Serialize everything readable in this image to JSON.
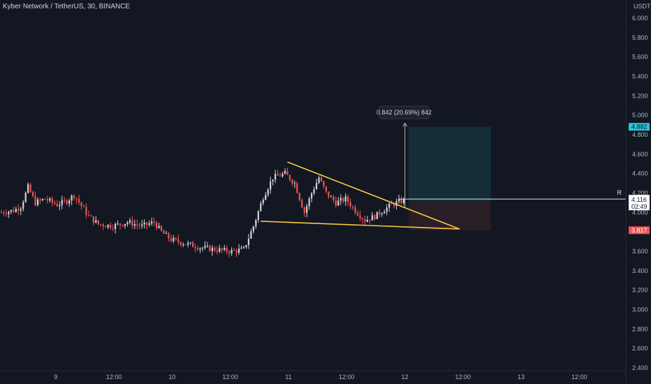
{
  "header": {
    "title": "Kyber Network / TetherUS, 30, BINANCE"
  },
  "axis": {
    "currency": "USDT"
  },
  "markers": {
    "target_price": "4.882",
    "current_price": "4.116",
    "countdown": "02:49",
    "stop_price": "3.817",
    "line_label": "R"
  },
  "measure": {
    "label": "0.842 (20.69%) 842"
  },
  "colors": {
    "background": "#131722",
    "up": "#d1d4dc",
    "down": "#ef5350",
    "trendline": "#f7c744",
    "target_zone": "#15303a",
    "stop_zone": "#2e1f27",
    "target_tag": "#26c6da",
    "stop_tag": "#f05350"
  },
  "chart_data": {
    "type": "candlestick",
    "title": "Kyber Network / TetherUS, 30, BINANCE",
    "y_tick_labels": [
      "6.000",
      "5.800",
      "5.600",
      "5.400",
      "5.200",
      "5.000",
      "4.800",
      "4.600",
      "4.400",
      "4.200",
      "4.000",
      "3.800",
      "3.600",
      "3.400",
      "3.200",
      "3.000",
      "2.800",
      "2.600",
      "2.400"
    ],
    "ylim": [
      2.4,
      6.08
    ],
    "x_tick_labels": [
      "9",
      "12:00",
      "10",
      "12:00",
      "11",
      "12:00",
      "12",
      "12:00",
      "13",
      "12:00"
    ],
    "price_path": [
      {
        "t": 0,
        "p": 4.0
      },
      {
        "t": 5,
        "p": 4.02
      },
      {
        "t": 8,
        "p": 4.06
      },
      {
        "t": 11,
        "p": 4.26
      },
      {
        "t": 14,
        "p": 4.1
      },
      {
        "t": 18,
        "p": 4.14
      },
      {
        "t": 23,
        "p": 4.08
      },
      {
        "t": 27,
        "p": 4.12
      },
      {
        "t": 30,
        "p": 4.18
      },
      {
        "t": 36,
        "p": 3.96
      },
      {
        "t": 40,
        "p": 3.88
      },
      {
        "t": 46,
        "p": 3.86
      },
      {
        "t": 52,
        "p": 3.9
      },
      {
        "t": 58,
        "p": 3.86
      },
      {
        "t": 63,
        "p": 3.9
      },
      {
        "t": 66,
        "p": 3.8
      },
      {
        "t": 70,
        "p": 3.72
      },
      {
        "t": 76,
        "p": 3.68
      },
      {
        "t": 82,
        "p": 3.64
      },
      {
        "t": 88,
        "p": 3.62
      },
      {
        "t": 95,
        "p": 3.6
      },
      {
        "t": 100,
        "p": 3.62
      },
      {
        "t": 104,
        "p": 3.86
      },
      {
        "t": 108,
        "p": 4.16
      },
      {
        "t": 112,
        "p": 4.36
      },
      {
        "t": 117,
        "p": 4.4
      },
      {
        "t": 121,
        "p": 4.3
      },
      {
        "t": 125,
        "p": 4.0
      },
      {
        "t": 128,
        "p": 4.2
      },
      {
        "t": 131,
        "p": 4.36
      },
      {
        "t": 134,
        "p": 4.2
      },
      {
        "t": 138,
        "p": 4.1
      },
      {
        "t": 142,
        "p": 4.14
      },
      {
        "t": 146,
        "p": 4.02
      },
      {
        "t": 150,
        "p": 3.92
      },
      {
        "t": 154,
        "p": 3.96
      },
      {
        "t": 158,
        "p": 4.03
      },
      {
        "t": 161,
        "p": 4.08
      },
      {
        "t": 164,
        "p": 4.11
      },
      {
        "t": 166,
        "p": 4.12
      }
    ],
    "candles_per_day": 48,
    "visible_days": 3.5,
    "drawings": {
      "upper_trendline": [
        {
          "t": 118,
          "p": 4.52
        },
        {
          "t": 189,
          "p": 3.83
        }
      ],
      "lower_trendline": [
        {
          "t": 107,
          "p": 3.91
        },
        {
          "t": 189,
          "p": 3.83
        }
      ],
      "horizontal_line_price": 4.138,
      "position": {
        "entry": 4.116,
        "target": 4.882,
        "stop": 3.817,
        "t_start": 168,
        "t_end": 202
      }
    }
  }
}
